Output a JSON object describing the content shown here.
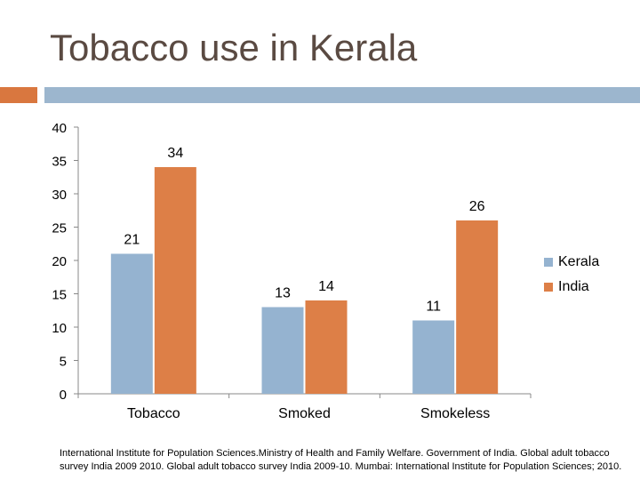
{
  "title": "Tobacco use in Kerala",
  "colors": {
    "kerala": "#95b3d0",
    "india": "#dd7f47",
    "accent_orange": "#d9773f",
    "accent_blue": "#9cb6ce"
  },
  "chart_data": {
    "type": "bar",
    "categories": [
      "Tobacco",
      "Smoked",
      "Smokeless"
    ],
    "series": [
      {
        "name": "Kerala",
        "values": [
          21,
          13,
          11
        ]
      },
      {
        "name": "India",
        "values": [
          34,
          14,
          26
        ]
      }
    ],
    "ylim": [
      0,
      40
    ],
    "yticks": [
      "0",
      "5",
      "10",
      "15",
      "20",
      "25",
      "30",
      "35",
      "40"
    ],
    "data_labels": true,
    "grid": false,
    "legend": "right"
  },
  "source": "International Institute for Population Sciences.Ministry of Health and Family Welfare. Government of India. Global adult tobacco survey India 2009 2010. Global adult tobacco survey India 2009-10. Mumbai: International Institute for Population Sciences; 2010."
}
